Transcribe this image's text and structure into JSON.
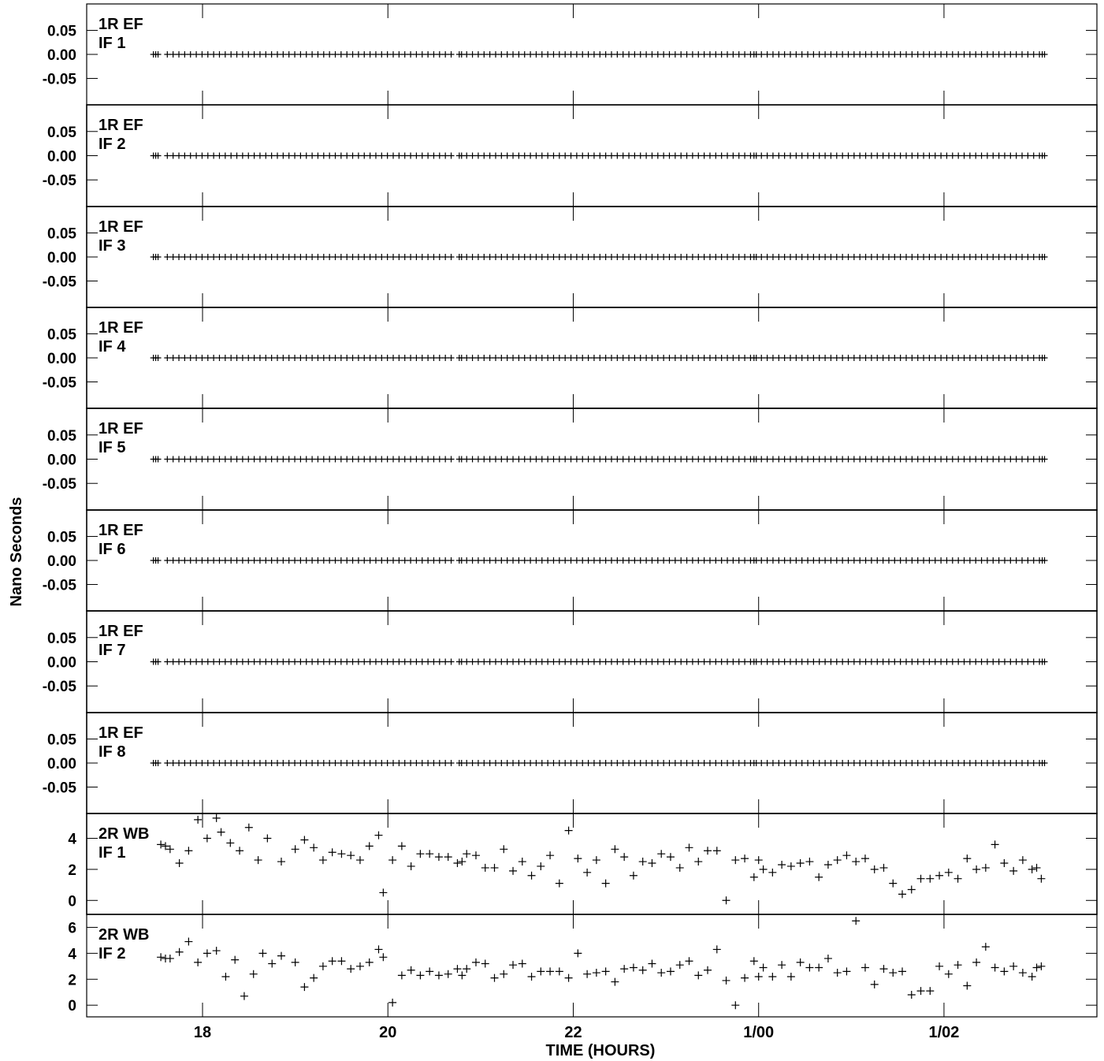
{
  "chart_data": {
    "type": "scatter",
    "xlabel": "TIME (HOURS)",
    "ylabel": "Nano Seconds",
    "x_range": [
      16.75,
      27.65
    ],
    "x_ticks": [
      {
        "value": 18,
        "label": "18"
      },
      {
        "value": 20,
        "label": "20"
      },
      {
        "value": 22,
        "label": "22"
      },
      {
        "value": 24,
        "label": "1/00"
      },
      {
        "value": 26,
        "label": "1/02"
      }
    ],
    "grid": false,
    "marker": "+",
    "panels": [
      {
        "label1": "1R EF",
        "label2": "IF 1",
        "ylim": [
          -0.105,
          0.105
        ],
        "yticks": [
          0.05,
          0.0,
          -0.05
        ],
        "ytick_labels": [
          "0.05",
          "0.00",
          "-0.05"
        ],
        "constant": 0.0
      },
      {
        "label1": "1R EF",
        "label2": "IF 2",
        "ylim": [
          -0.105,
          0.105
        ],
        "yticks": [
          0.05,
          0.0,
          -0.05
        ],
        "ytick_labels": [
          "0.05",
          "0.00",
          "-0.05"
        ],
        "constant": 0.0
      },
      {
        "label1": "1R EF",
        "label2": "IF 3",
        "ylim": [
          -0.105,
          0.105
        ],
        "yticks": [
          0.05,
          0.0,
          -0.05
        ],
        "ytick_labels": [
          "0.05",
          "0.00",
          "-0.05"
        ],
        "constant": 0.0
      },
      {
        "label1": "1R EF",
        "label2": "IF 4",
        "ylim": [
          -0.105,
          0.105
        ],
        "yticks": [
          0.05,
          0.0,
          -0.05
        ],
        "ytick_labels": [
          "0.05",
          "0.00",
          "-0.05"
        ],
        "constant": 0.0
      },
      {
        "label1": "1R EF",
        "label2": "IF 5",
        "ylim": [
          -0.105,
          0.105
        ],
        "yticks": [
          0.05,
          0.0,
          -0.05
        ],
        "ytick_labels": [
          "0.05",
          "0.00",
          "-0.05"
        ],
        "constant": 0.0
      },
      {
        "label1": "1R EF",
        "label2": "IF 6",
        "ylim": [
          -0.105,
          0.105
        ],
        "yticks": [
          0.05,
          0.0,
          -0.05
        ],
        "ytick_labels": [
          "0.05",
          "0.00",
          "-0.05"
        ],
        "constant": 0.0
      },
      {
        "label1": "1R EF",
        "label2": "IF 7",
        "ylim": [
          -0.105,
          0.105
        ],
        "yticks": [
          0.05,
          0.0,
          -0.05
        ],
        "ytick_labels": [
          "0.05",
          "0.00",
          "-0.05"
        ],
        "constant": 0.0
      },
      {
        "label1": "1R EF",
        "label2": "IF 8",
        "ylim": [
          -0.105,
          0.105
        ],
        "yticks": [
          0.05,
          0.0,
          -0.05
        ],
        "ytick_labels": [
          "0.05",
          "0.00",
          "-0.05"
        ],
        "constant": 0.0
      },
      {
        "label1": "2R WB",
        "label2": "IF 1",
        "ylim": [
          -0.9,
          5.6
        ],
        "yticks": [
          4,
          2,
          0
        ],
        "ytick_labels": [
          "4",
          "2",
          "0"
        ],
        "x": [
          17.55,
          17.6,
          17.65,
          17.75,
          17.85,
          17.95,
          18.05,
          18.15,
          18.2,
          18.3,
          18.4,
          18.5,
          18.6,
          18.7,
          18.85,
          19.0,
          19.1,
          19.2,
          19.3,
          19.4,
          19.5,
          19.6,
          19.7,
          19.8,
          19.9,
          19.95,
          20.05,
          20.15,
          20.25,
          20.35,
          20.45,
          20.55,
          20.65,
          20.75,
          20.8,
          20.85,
          20.95,
          21.05,
          21.15,
          21.25,
          21.35,
          21.45,
          21.55,
          21.65,
          21.75,
          21.85,
          21.95,
          22.05,
          22.15,
          22.25,
          22.35,
          22.45,
          22.55,
          22.65,
          22.75,
          22.85,
          22.95,
          23.05,
          23.15,
          23.25,
          23.35,
          23.45,
          23.55,
          23.65,
          23.75,
          23.85,
          23.95,
          24.0,
          24.05,
          24.15,
          24.25,
          24.35,
          24.45,
          24.55,
          24.65,
          24.75,
          24.85,
          24.95,
          25.05,
          25.15,
          25.25,
          25.35,
          25.45,
          25.55,
          25.65,
          25.75,
          25.85,
          25.95,
          26.05,
          26.15,
          26.25,
          26.35,
          26.45,
          26.55,
          26.65,
          26.75,
          26.85,
          26.95,
          27.0,
          27.05
        ],
        "y": [
          3.6,
          3.5,
          3.3,
          2.4,
          3.2,
          5.2,
          4.0,
          5.3,
          4.4,
          3.7,
          3.2,
          4.7,
          2.6,
          4.0,
          2.5,
          3.3,
          3.9,
          3.4,
          2.6,
          3.1,
          3.0,
          2.9,
          2.6,
          3.5,
          4.2,
          0.5,
          2.6,
          3.5,
          2.2,
          3.0,
          3.0,
          2.8,
          2.8,
          2.4,
          2.5,
          3.0,
          2.9,
          2.1,
          2.1,
          3.3,
          1.9,
          2.5,
          1.6,
          2.2,
          2.9,
          1.1,
          4.5,
          2.7,
          1.8,
          2.6,
          1.1,
          3.3,
          2.8,
          1.6,
          2.5,
          2.4,
          3.0,
          2.8,
          2.1,
          3.4,
          2.5,
          3.2,
          3.2,
          0.0,
          2.6,
          2.7,
          1.5,
          2.6,
          2.0,
          1.8,
          2.3,
          2.2,
          2.4,
          2.5,
          1.5,
          2.3,
          2.6,
          2.9,
          2.5,
          2.7,
          2.0,
          2.1,
          1.1,
          0.4,
          0.7,
          1.4,
          1.4,
          1.6,
          1.8,
          1.4,
          2.7,
          2.0,
          2.1,
          3.6,
          2.4,
          1.9,
          2.6,
          2.0,
          2.1,
          1.4
        ]
      },
      {
        "label1": "2R WB",
        "label2": "IF 2",
        "ylim": [
          -0.9,
          7.0
        ],
        "yticks": [
          6,
          4,
          2,
          0
        ],
        "ytick_labels": [
          "6",
          "4",
          "2",
          "0"
        ],
        "x": [
          17.55,
          17.6,
          17.65,
          17.75,
          17.85,
          17.95,
          18.05,
          18.15,
          18.25,
          18.35,
          18.45,
          18.55,
          18.65,
          18.75,
          18.85,
          19.0,
          19.1,
          19.2,
          19.3,
          19.4,
          19.5,
          19.6,
          19.7,
          19.8,
          19.9,
          19.95,
          20.05,
          20.15,
          20.25,
          20.35,
          20.45,
          20.55,
          20.65,
          20.75,
          20.8,
          20.85,
          20.95,
          21.05,
          21.15,
          21.25,
          21.35,
          21.45,
          21.55,
          21.65,
          21.75,
          21.85,
          21.95,
          22.05,
          22.15,
          22.25,
          22.35,
          22.45,
          22.55,
          22.65,
          22.75,
          22.85,
          22.95,
          23.05,
          23.15,
          23.25,
          23.35,
          23.45,
          23.55,
          23.65,
          23.75,
          23.85,
          23.95,
          24.0,
          24.05,
          24.15,
          24.25,
          24.35,
          24.45,
          24.55,
          24.65,
          24.75,
          24.85,
          24.95,
          25.05,
          25.15,
          25.25,
          25.35,
          25.45,
          25.55,
          25.65,
          25.75,
          25.85,
          25.95,
          26.05,
          26.15,
          26.25,
          26.35,
          26.45,
          26.55,
          26.65,
          26.75,
          26.85,
          26.95,
          27.0,
          27.05
        ],
        "y": [
          3.7,
          3.6,
          3.6,
          4.1,
          4.9,
          3.3,
          4.0,
          4.2,
          2.2,
          3.5,
          0.7,
          2.4,
          4.0,
          3.2,
          3.8,
          3.3,
          1.4,
          2.1,
          3.0,
          3.4,
          3.4,
          2.8,
          3.0,
          3.3,
          4.3,
          3.7,
          0.2,
          2.3,
          2.7,
          2.3,
          2.6,
          2.3,
          2.4,
          2.8,
          2.3,
          2.8,
          3.3,
          3.2,
          2.1,
          2.4,
          3.1,
          3.2,
          2.2,
          2.6,
          2.6,
          2.6,
          2.1,
          4.0,
          2.4,
          2.5,
          2.6,
          1.8,
          2.8,
          2.9,
          2.7,
          3.2,
          2.5,
          2.6,
          3.1,
          3.4,
          2.3,
          2.7,
          4.3,
          1.9,
          0.0,
          2.1,
          3.4,
          2.2,
          2.9,
          2.2,
          3.1,
          2.2,
          3.3,
          2.9,
          2.9,
          3.6,
          2.5,
          2.6,
          6.5,
          2.9,
          1.6,
          2.8,
          2.5,
          2.6,
          0.8,
          1.1,
          1.1,
          3.0,
          2.4,
          3.1,
          1.5,
          3.3,
          4.5,
          2.9,
          2.6,
          3.0,
          2.5,
          2.2,
          2.9,
          3.0
        ]
      }
    ]
  }
}
